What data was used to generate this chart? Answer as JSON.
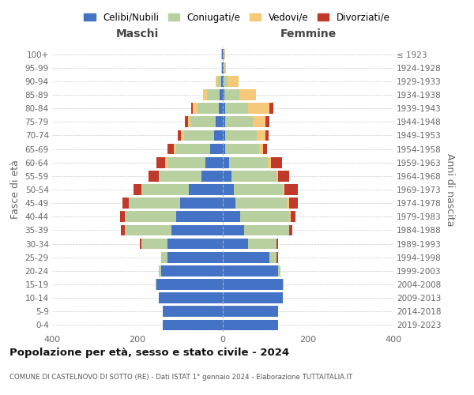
{
  "age_groups": [
    "0-4",
    "5-9",
    "10-14",
    "15-19",
    "20-24",
    "25-29",
    "30-34",
    "35-39",
    "40-44",
    "45-49",
    "50-54",
    "55-59",
    "60-64",
    "65-69",
    "70-74",
    "75-79",
    "80-84",
    "85-89",
    "90-94",
    "95-99",
    "100+"
  ],
  "birth_years": [
    "2019-2023",
    "2014-2018",
    "2009-2013",
    "2004-2008",
    "1999-2003",
    "1994-1998",
    "1989-1993",
    "1984-1988",
    "1979-1983",
    "1974-1978",
    "1969-1973",
    "1964-1968",
    "1959-1963",
    "1954-1958",
    "1949-1953",
    "1944-1948",
    "1939-1943",
    "1934-1938",
    "1929-1933",
    "1924-1928",
    "≤ 1923"
  ],
  "colors": {
    "celibi": "#4472c4",
    "coniugati": "#b8cfa0",
    "vedovi": "#f5c87a",
    "divorziati": "#c0392b"
  },
  "males": {
    "celibi": [
      140,
      140,
      150,
      155,
      145,
      130,
      130,
      120,
      110,
      100,
      80,
      50,
      40,
      30,
      20,
      16,
      10,
      7,
      3,
      1,
      2
    ],
    "coniugati": [
      0,
      0,
      0,
      2,
      5,
      15,
      60,
      110,
      120,
      120,
      110,
      100,
      90,
      80,
      70,
      60,
      50,
      30,
      8,
      2,
      1
    ],
    "vedovi": [
      0,
      0,
      0,
      0,
      0,
      0,
      0,
      0,
      0,
      0,
      0,
      0,
      5,
      5,
      8,
      5,
      10,
      10,
      5,
      0,
      0
    ],
    "divorziati": [
      0,
      0,
      0,
      0,
      0,
      0,
      5,
      8,
      10,
      15,
      20,
      25,
      20,
      15,
      8,
      8,
      5,
      0,
      0,
      0,
      0
    ]
  },
  "females": {
    "celibi": [
      130,
      130,
      140,
      140,
      130,
      110,
      60,
      50,
      40,
      30,
      25,
      20,
      15,
      5,
      5,
      5,
      5,
      3,
      2,
      1,
      2
    ],
    "coniugati": [
      0,
      0,
      0,
      2,
      5,
      15,
      65,
      105,
      115,
      120,
      115,
      105,
      90,
      80,
      75,
      65,
      55,
      35,
      10,
      2,
      1
    ],
    "vedovi": [
      0,
      0,
      0,
      0,
      0,
      0,
      0,
      0,
      5,
      5,
      5,
      5,
      8,
      10,
      20,
      30,
      50,
      40,
      25,
      5,
      3
    ],
    "divorziati": [
      0,
      0,
      0,
      0,
      0,
      5,
      5,
      8,
      10,
      20,
      30,
      25,
      25,
      8,
      8,
      10,
      8,
      0,
      0,
      0,
      0
    ]
  },
  "title": "Popolazione per età, sesso e stato civile - 2024",
  "subtitle": "COMUNE DI CASTELNOVO DI SOTTO (RE) - Dati ISTAT 1° gennaio 2024 - Elaborazione TUTTAITALIA.IT",
  "xlabel_left": "Maschi",
  "xlabel_right": "Femmine",
  "ylabel_left": "Fasce di età",
  "ylabel_right": "Anni di nascita",
  "xlim": 400,
  "legend_labels": [
    "Celibi/Nubili",
    "Coniugati/e",
    "Vedovi/e",
    "Divorziati/e"
  ],
  "background_color": "#ffffff",
  "grid_color": "#cccccc"
}
